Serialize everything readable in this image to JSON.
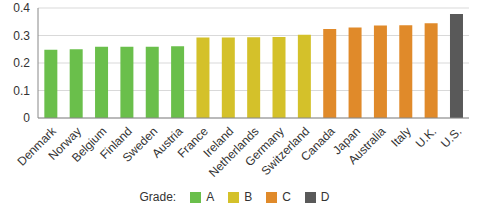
{
  "chart_data": {
    "type": "bar",
    "categories": [
      "Denmark",
      "Norway",
      "Belgium",
      "Finland",
      "Sweden",
      "Austria",
      "France",
      "Ireland",
      "Netherlands",
      "Germany",
      "Switzerland",
      "Canada",
      "Japan",
      "Australia",
      "Italy",
      "U.K.",
      "U.S."
    ],
    "legend_title": "Grade:",
    "series": [
      {
        "name": "A",
        "color": "#6abf4b",
        "values": [
          0.248,
          0.25,
          0.259,
          0.259,
          0.259,
          0.261,
          null,
          null,
          null,
          null,
          null,
          null,
          null,
          null,
          null,
          null,
          null
        ]
      },
      {
        "name": "B",
        "color": "#d4c12a",
        "values": [
          null,
          null,
          null,
          null,
          null,
          null,
          0.293,
          0.293,
          0.294,
          0.295,
          0.303,
          null,
          null,
          null,
          null,
          null,
          null
        ]
      },
      {
        "name": "C",
        "color": "#e08a2a",
        "values": [
          null,
          null,
          null,
          null,
          null,
          null,
          null,
          null,
          null,
          null,
          null,
          0.324,
          0.329,
          0.336,
          0.337,
          0.345,
          null
        ]
      },
      {
        "name": "D",
        "color": "#595959",
        "values": [
          null,
          null,
          null,
          null,
          null,
          null,
          null,
          null,
          null,
          null,
          null,
          null,
          null,
          null,
          null,
          null,
          0.378
        ]
      }
    ],
    "stacked": true,
    "ylim": [
      0,
      0.4
    ],
    "yticks": [
      0,
      0.1,
      0.2,
      0.3,
      0.4
    ],
    "grid": true,
    "legend": "bottom"
  }
}
